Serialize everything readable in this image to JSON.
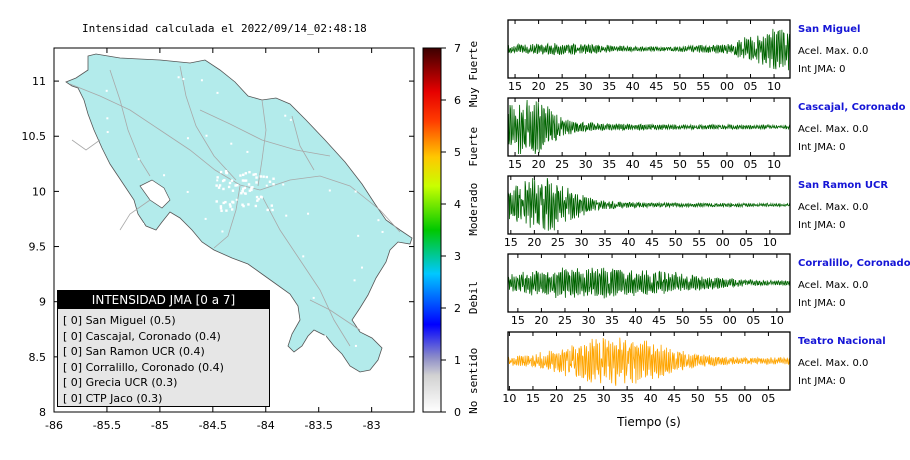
{
  "map": {
    "title": "Intensidad calculada el 2022/09/14_02:48:18",
    "x_ticks": [
      "-86",
      "-85.5",
      "-85",
      "-84.5",
      "-84",
      "-83.5",
      "-83"
    ],
    "y_ticks": [
      "11",
      "10.5",
      "10",
      "9.5",
      "9",
      "8.5",
      "8"
    ],
    "xlim": [
      -86,
      -82.6
    ],
    "ylim": [
      8,
      11.3
    ],
    "land_color": "#b3ebeb"
  },
  "scale": {
    "ticks": [
      "7",
      "6",
      "5",
      "4",
      "3",
      "2",
      "1",
      "0"
    ],
    "labels": [
      "Muy Fuerte",
      "Fuerte",
      "Moderado",
      "Debil",
      "No sentido"
    ],
    "range": [
      0,
      7
    ]
  },
  "legend": {
    "title": "INTENSIDAD JMA [0 a 7]",
    "rows": [
      "[ 0] San Miguel (0.5)",
      "[ 0] Cascajal, Coronado (0.4)",
      "[ 0] San Ramon UCR (0.4)",
      "[ 0] Corralillo, Coronado (0.4)",
      "[ 0] Grecia UCR (0.3)",
      "[ 0] CTP Jaco (0.3)"
    ]
  },
  "chart_data": [
    {
      "type": "line",
      "name": "San Miguel",
      "x_ticks": [
        "15",
        "20",
        "25",
        "30",
        "35",
        "40",
        "45",
        "50",
        "55",
        "00",
        "05",
        "10"
      ],
      "color": "#006400",
      "accel_label": "Acel. Max. 0.0",
      "intensity_label": "Int JMA: 0"
    },
    {
      "type": "line",
      "name": "Cascajal, Coronado",
      "x_ticks": [
        "15",
        "20",
        "25",
        "30",
        "35",
        "40",
        "45",
        "50",
        "55",
        "00",
        "05",
        "10"
      ],
      "color": "#006400",
      "accel_label": "Acel. Max. 0.0",
      "intensity_label": "Int JMA: 0"
    },
    {
      "type": "line",
      "name": "San Ramon UCR",
      "x_ticks": [
        "15",
        "20",
        "25",
        "30",
        "35",
        "40",
        "45",
        "50",
        "55",
        "00",
        "05",
        "10"
      ],
      "color": "#006400",
      "accel_label": "Acel. Max. 0.0",
      "intensity_label": "Int JMA: 0"
    },
    {
      "type": "line",
      "name": "Corralillo, Coronado",
      "x_ticks": [
        "15",
        "20",
        "25",
        "30",
        "35",
        "40",
        "45",
        "50",
        "55",
        "00",
        "05",
        "10"
      ],
      "color": "#006400",
      "accel_label": "Acel. Max. 0.0",
      "intensity_label": "Int JMA: 0"
    },
    {
      "type": "line",
      "name": "Teatro Nacional",
      "x_ticks": [
        "10",
        "15",
        "20",
        "25",
        "30",
        "35",
        "40",
        "45",
        "50",
        "55",
        "00",
        "05"
      ],
      "color": "#ffa500",
      "accel_label": "Acel. Max. 0.0",
      "intensity_label": "Int JMA: 0",
      "xlabel": "Tiempo (s)"
    }
  ]
}
